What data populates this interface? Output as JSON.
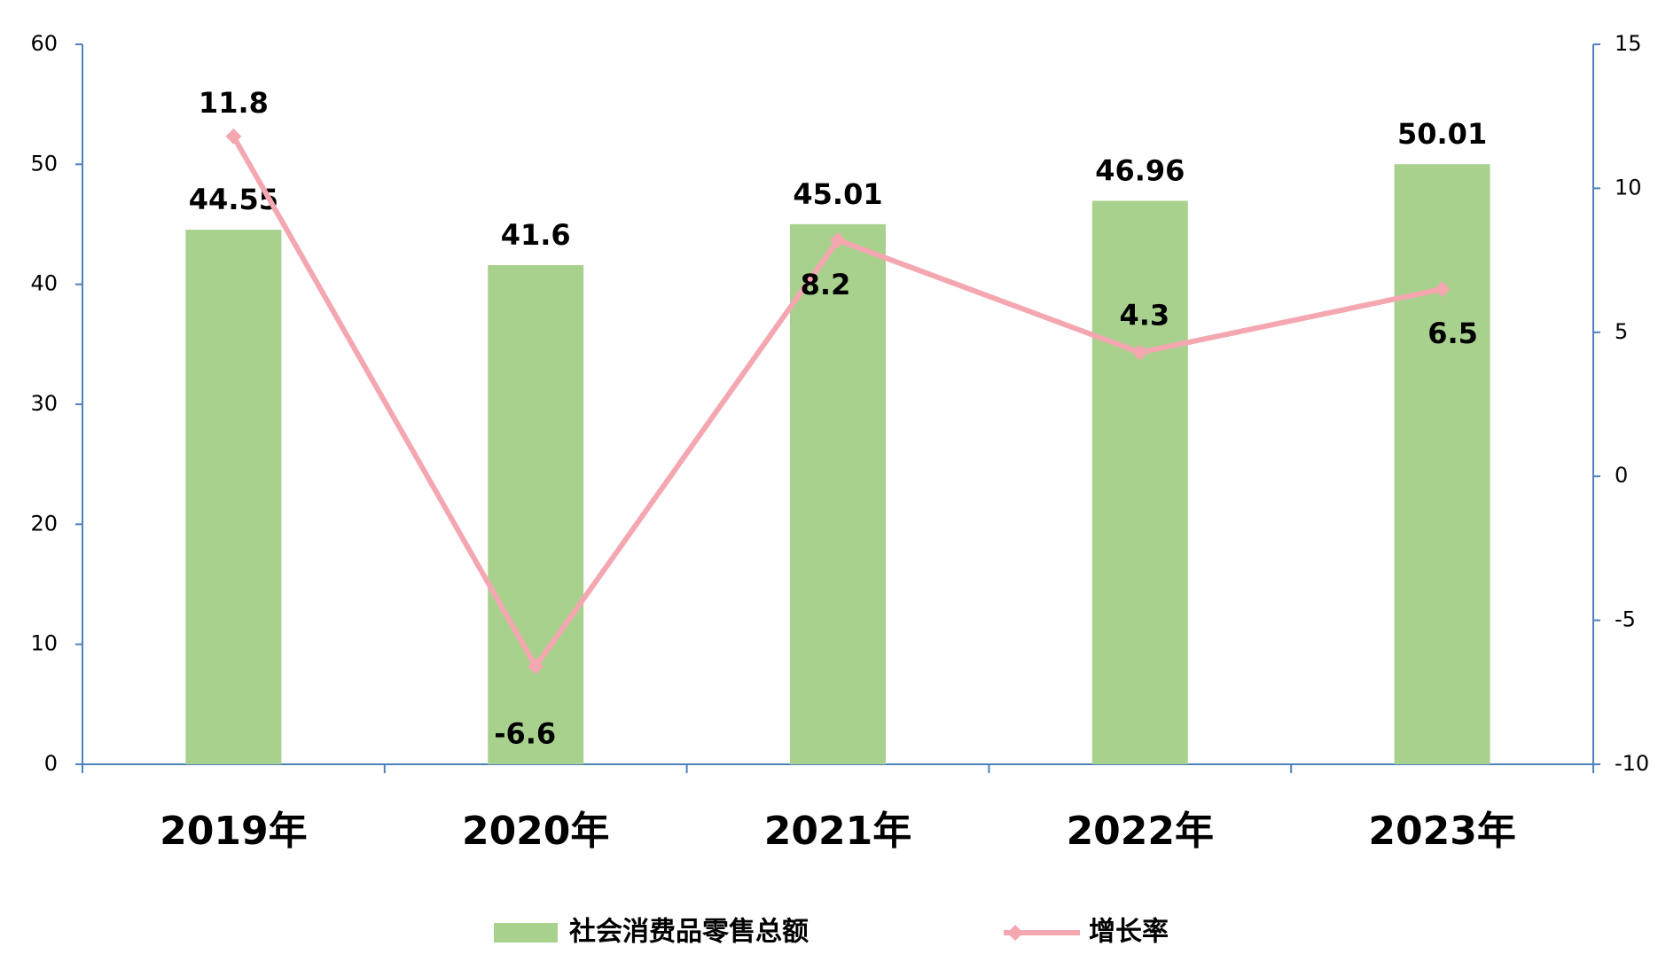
{
  "chart_data": {
    "type": "bar-line",
    "categories": [
      "2019年",
      "2020年",
      "2021年",
      "2022年",
      "2023年"
    ],
    "series": [
      {
        "name": "社会消费品零售总额",
        "type": "bar",
        "color": "#a9d18e",
        "values": [
          44.55,
          41.6,
          45.01,
          46.96,
          50.01
        ]
      },
      {
        "name": "增长率",
        "type": "line",
        "axis": "y2",
        "color": "#f4a7b0",
        "values": [
          11.8,
          -6.6,
          8.2,
          4.3,
          6.5
        ]
      }
    ],
    "ylim": [
      0,
      60
    ],
    "yticks": [
      0,
      10,
      20,
      30,
      40,
      50,
      60
    ],
    "y2lim": [
      -10,
      15
    ],
    "y2ticks": [
      -10,
      -5,
      0,
      5,
      10,
      15
    ],
    "legend": "bottom",
    "grid": false
  }
}
